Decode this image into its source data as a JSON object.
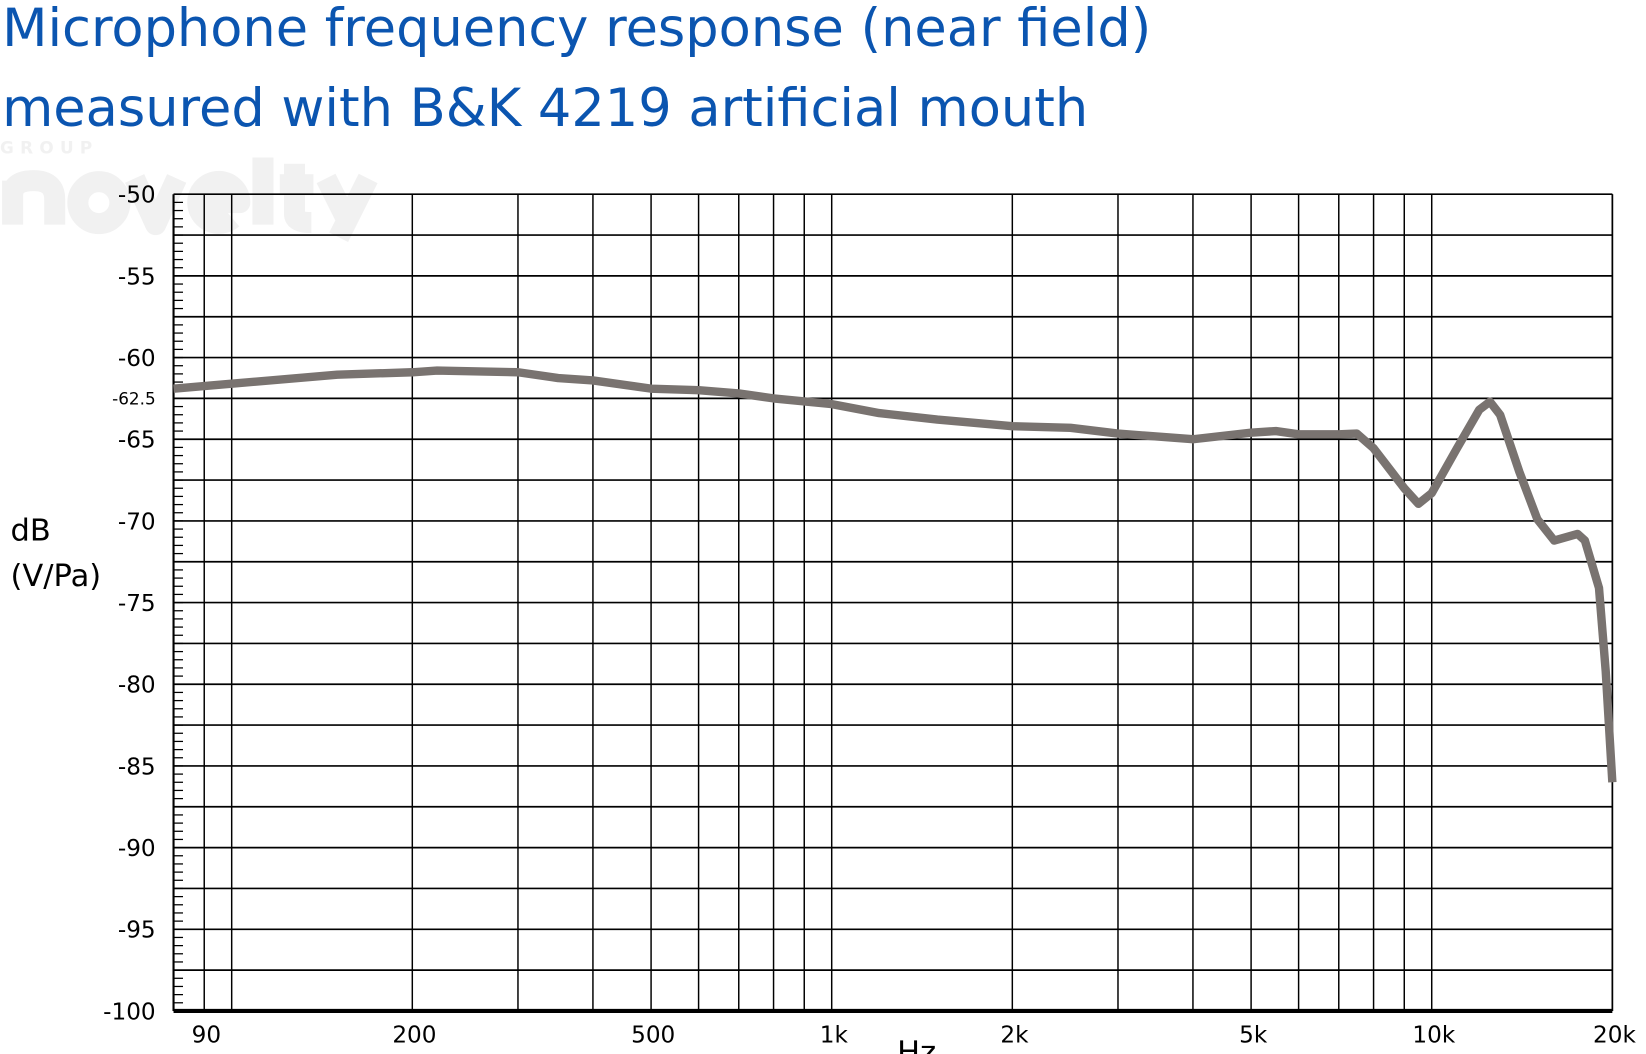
{
  "chart_data": {
    "type": "line",
    "title": "Microphone frequency response (near field)",
    "subtitle": "measured with B&K 4219 artificial mouth",
    "xlabel": "Hz",
    "ylabel_line1": "dB",
    "ylabel_line2": "(V/Pa)",
    "x_scale": "log",
    "xlim": [
      80,
      20000
    ],
    "ylim": [
      -100,
      -50
    ],
    "grid": true,
    "x_ticks": [
      {
        "value": 90,
        "label": "90"
      },
      {
        "value": 200,
        "label": "200"
      },
      {
        "value": 500,
        "label": "500"
      },
      {
        "value": 1000,
        "label": "1k"
      },
      {
        "value": 2000,
        "label": "2k"
      },
      {
        "value": 5000,
        "label": "5k"
      },
      {
        "value": 10000,
        "label": "10k"
      },
      {
        "value": 20000,
        "label": "20k"
      }
    ],
    "x_gridlines": [
      90,
      100,
      200,
      300,
      400,
      500,
      600,
      700,
      800,
      900,
      1000,
      2000,
      3000,
      4000,
      5000,
      6000,
      7000,
      8000,
      9000,
      10000,
      20000
    ],
    "y_ticks": [
      {
        "value": -50,
        "label": "-50"
      },
      {
        "value": -55,
        "label": "-55"
      },
      {
        "value": -60,
        "label": "-60"
      },
      {
        "value": -62.5,
        "label": "-62.5"
      },
      {
        "value": -65,
        "label": "-65"
      },
      {
        "value": -70,
        "label": "-70"
      },
      {
        "value": -75,
        "label": "-75"
      },
      {
        "value": -80,
        "label": "-80"
      },
      {
        "value": -85,
        "label": "-85"
      },
      {
        "value": -90,
        "label": "-90"
      },
      {
        "value": -95,
        "label": "-95"
      },
      {
        "value": -100,
        "label": "-100"
      }
    ],
    "y_grid_step": 2.5,
    "y_minor_step": 0.5,
    "line_color": "#797370",
    "title_color": "#0b55b0",
    "series": [
      {
        "x": [
          80,
          100,
          150,
          200,
          220,
          300,
          350,
          400,
          500,
          600,
          700,
          800,
          1000,
          1200,
          1500,
          2000,
          2500,
          3000,
          4000,
          5000,
          5500,
          6000,
          7000,
          7500,
          8000,
          9000,
          9500,
          10000,
          11000,
          12000,
          12500,
          13000,
          14000,
          15000,
          16000,
          17500,
          18000,
          19000,
          19500,
          20000
        ],
        "y": [
          -61.9,
          -61.6,
          -61.05,
          -60.9,
          -60.8,
          -60.9,
          -61.25,
          -61.4,
          -61.9,
          -62.0,
          -62.2,
          -62.5,
          -62.85,
          -63.4,
          -63.8,
          -64.2,
          -64.3,
          -64.65,
          -65.0,
          -64.6,
          -64.5,
          -64.7,
          -64.7,
          -64.65,
          -65.55,
          -68.0,
          -68.95,
          -68.3,
          -65.6,
          -63.2,
          -62.7,
          -63.5,
          -67.0,
          -69.9,
          -71.2,
          -70.8,
          -71.2,
          -74.1,
          -79.2,
          -86.0
        ]
      }
    ]
  },
  "watermark": {
    "small": "GROUP",
    "big": "novelty"
  }
}
